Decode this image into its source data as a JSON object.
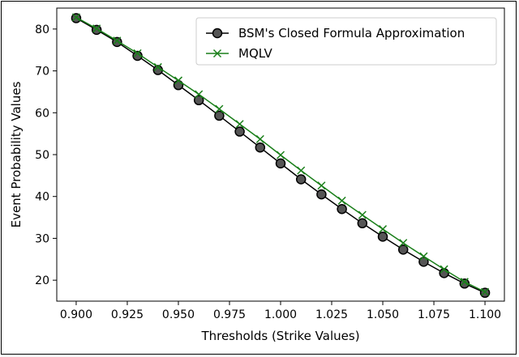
{
  "chart_data": {
    "type": "line",
    "title": "",
    "xlabel": "Thresholds (Strike Values)",
    "ylabel": "Event Probability Values",
    "xlim": [
      0.8905,
      1.1095
    ],
    "ylim": [
      15,
      85
    ],
    "xticks": [
      "0.900",
      "0.925",
      "0.950",
      "0.975",
      "1.000",
      "1.025",
      "1.050",
      "1.075",
      "1.100"
    ],
    "yticks": [
      "20",
      "30",
      "40",
      "50",
      "60",
      "70",
      "80"
    ],
    "grid": false,
    "legend_position": "top-right",
    "x": [
      0.9,
      0.91,
      0.92,
      0.93,
      0.94,
      0.95,
      0.96,
      0.97,
      0.98,
      0.99,
      1.0,
      1.01,
      1.02,
      1.03,
      1.04,
      1.05,
      1.06,
      1.07,
      1.08,
      1.09,
      1.1
    ],
    "series": [
      {
        "name": "BSM's Closed Formula Approximation",
        "color": "#000000",
        "marker": "circle",
        "values": [
          82.6,
          79.8,
          76.9,
          73.6,
          70.2,
          66.6,
          63.0,
          59.3,
          55.5,
          51.7,
          47.9,
          44.1,
          40.5,
          37.0,
          33.6,
          30.4,
          27.3,
          24.4,
          21.7,
          19.2,
          17.0
        ]
      },
      {
        "name": "MQLV",
        "color": "#1a7f1a",
        "marker": "x",
        "values": [
          82.8,
          80.1,
          77.2,
          74.2,
          70.9,
          67.7,
          64.4,
          60.9,
          57.3,
          53.7,
          49.9,
          46.2,
          42.6,
          39.0,
          35.6,
          32.2,
          28.9,
          25.7,
          22.6,
          19.6,
          17.2
        ]
      }
    ]
  }
}
